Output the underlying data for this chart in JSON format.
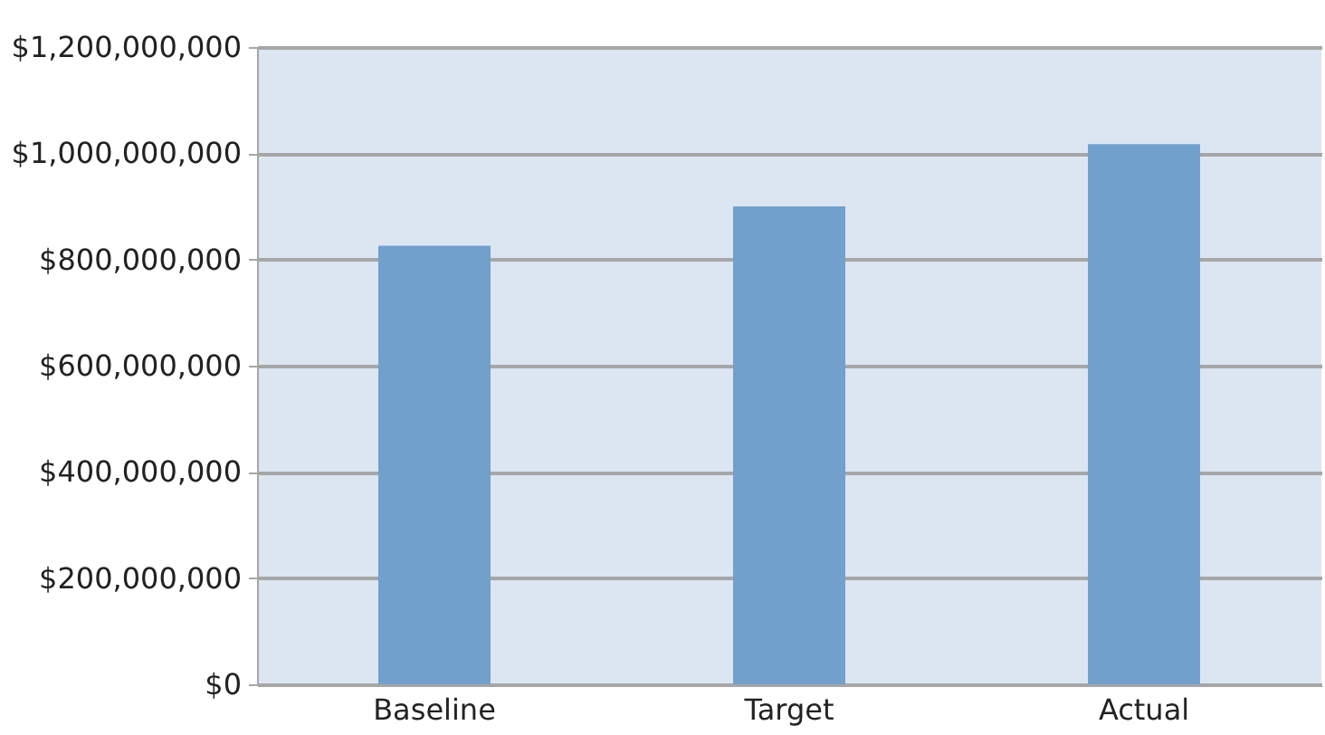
{
  "chart_data": {
    "type": "bar",
    "categories": [
      "Baseline",
      "Target",
      "Actual"
    ],
    "values": [
      826000000,
      900000000,
      1017000000
    ],
    "color": "#71a0cd",
    "ylim": [
      0,
      1200000000
    ],
    "yticks": [
      {
        "value": 0,
        "label": "$0"
      },
      {
        "value": 200000000,
        "label": "$200,000,000"
      },
      {
        "value": 400000000,
        "label": "$400,000,000"
      },
      {
        "value": 600000000,
        "label": "$600,000,000"
      },
      {
        "value": 800000000,
        "label": "$800,000,000"
      },
      {
        "value": 1000000000,
        "label": "$1,000,000,000"
      },
      {
        "value": 1200000000,
        "label": "$1,200,000,000"
      }
    ],
    "grid": "y"
  }
}
